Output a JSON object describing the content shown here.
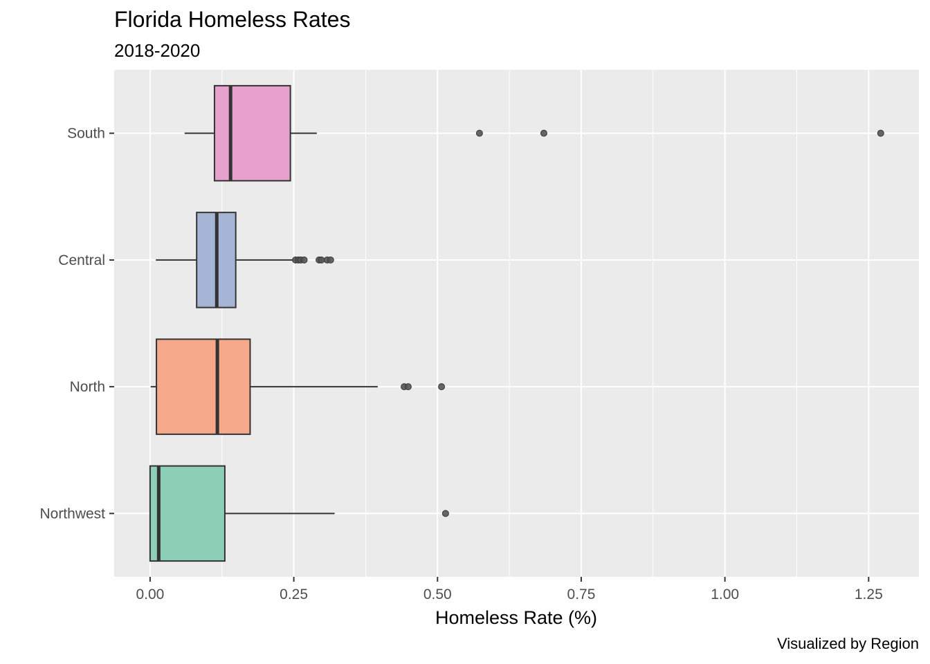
{
  "chart_data": {
    "type": "boxplot",
    "orientation": "horizontal",
    "title": "Florida Homeless Rates",
    "subtitle": "2018-2020",
    "caption": "Visualized by Region",
    "xlabel": "Homeless Rate (%)",
    "ylabel": "",
    "xlim": [
      -0.0625,
      1.3375
    ],
    "xticks": [
      0.0,
      0.25,
      0.5,
      0.75,
      1.0,
      1.25
    ],
    "xtick_labels": [
      "0.00",
      "0.25",
      "0.50",
      "0.75",
      "1.00",
      "1.25"
    ],
    "grid": true,
    "legend": "none",
    "categories": [
      "South",
      "Central",
      "North",
      "Northwest"
    ],
    "boxes": [
      {
        "category": "South",
        "color": "#e7a1cd",
        "min": 0.06,
        "q1": 0.112,
        "median": 0.14,
        "q3": 0.244,
        "max": 0.29,
        "outliers": [
          0.573,
          0.685,
          1.271
        ]
      },
      {
        "category": "Central",
        "color": "#a6b4d5",
        "min": 0.01,
        "q1": 0.081,
        "median": 0.116,
        "q3": 0.149,
        "max": 0.25,
        "outliers": [
          0.253,
          0.258,
          0.262,
          0.268,
          0.294,
          0.298,
          0.308,
          0.314
        ]
      },
      {
        "category": "North",
        "color": "#f5a98a",
        "min": 0.001,
        "q1": 0.011,
        "median": 0.117,
        "q3": 0.174,
        "max": 0.396,
        "outliers": [
          0.442,
          0.449,
          0.507
        ]
      },
      {
        "category": "Northwest",
        "color": "#8dcfb7",
        "min": 0.0,
        "q1": 0.0,
        "median": 0.015,
        "q3": 0.13,
        "max": 0.321,
        "outliers": [
          0.514
        ]
      }
    ]
  }
}
